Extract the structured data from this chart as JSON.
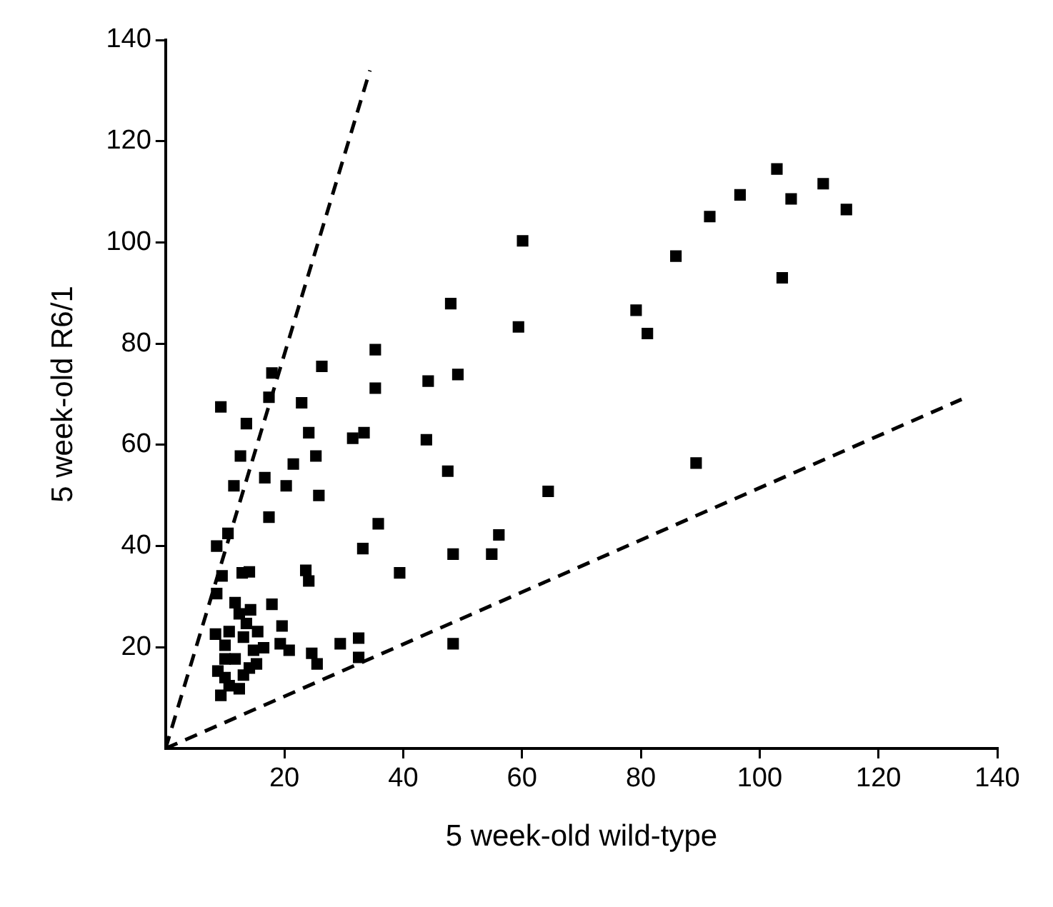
{
  "chart_data": {
    "type": "scatter",
    "xlabel": "5 week-old wild-type",
    "ylabel": "5 week-old R6/1",
    "xlim": [
      0,
      140
    ],
    "ylim": [
      0,
      140
    ],
    "xticks": [
      20,
      40,
      60,
      80,
      100,
      120,
      140
    ],
    "yticks": [
      20,
      40,
      60,
      80,
      100,
      120,
      140
    ],
    "grid": false,
    "legend": false,
    "marker": "square",
    "series": [
      {
        "color": "#000000",
        "x": [
          102.9,
          96.7,
          105.3,
          110.7,
          114.6,
          91.6,
          85.9,
          103.8,
          79.2,
          81.1,
          64.4,
          89.3,
          60.1,
          48,
          59.4,
          35.3,
          26.3,
          17.9,
          35.3,
          44.2,
          49.2,
          17.4,
          22.9,
          9.3,
          13.6,
          24.1,
          31.5,
          33.4,
          43.9,
          12.6,
          25.3,
          21.5,
          16.7,
          11.5,
          20.3,
          25.8,
          47.5,
          17.4,
          35.8,
          56.1,
          33.2,
          48.4,
          54.9,
          39.4,
          8.6,
          10.5,
          23.6,
          24.1,
          9.5,
          12.9,
          14.1,
          17.9,
          8.6,
          19.6,
          19.3,
          20.8,
          24.6,
          25.5,
          29.4,
          32.5,
          32.5,
          48.4,
          8.4,
          9.3,
          12.4,
          10,
          14.1,
          11.7,
          14.8,
          16.5,
          13.1,
          10.7,
          15.5,
          13.6,
          12.4,
          14.3,
          11.7,
          10,
          10,
          15.3,
          13.1,
          10.7,
          8.8
        ],
        "values": [
          114.5,
          109.4,
          108.6,
          111.6,
          106.5,
          105.1,
          97.3,
          93,
          86.6,
          82,
          50.8,
          56.4,
          100.3,
          87.9,
          83.3,
          78.8,
          75.5,
          74.2,
          71.2,
          72.6,
          73.9,
          69.4,
          68.3,
          67.5,
          64.2,
          62.4,
          61.3,
          62.4,
          61,
          57.8,
          57.8,
          56.2,
          53.5,
          51.9,
          51.9,
          50,
          54.8,
          45.7,
          44.4,
          42.2,
          39.5,
          38.4,
          38.4,
          34.7,
          40,
          42.5,
          35.2,
          33.1,
          34.1,
          34.7,
          34.9,
          28.5,
          30.6,
          24.2,
          20.7,
          19.4,
          18.8,
          16.7,
          20.7,
          21.8,
          18,
          20.7,
          22.6,
          10.5,
          11.8,
          14,
          15.9,
          17.7,
          19.4,
          19.9,
          22,
          23.1,
          23.1,
          24.7,
          26.6,
          27.4,
          28.8,
          20.4,
          17.7,
          16.7,
          14.5,
          12.4,
          15.3
        ]
      },
      {
        "type": "line",
        "color": "#000000",
        "line_style": "dashed",
        "marker": "none",
        "x": [
          0,
          34.4
        ],
        "values": [
          0,
          134
        ]
      },
      {
        "type": "line",
        "color": "#000000",
        "line_style": "dashed",
        "marker": "none",
        "x": [
          0,
          134
        ],
        "values": [
          0,
          69
        ]
      }
    ]
  }
}
